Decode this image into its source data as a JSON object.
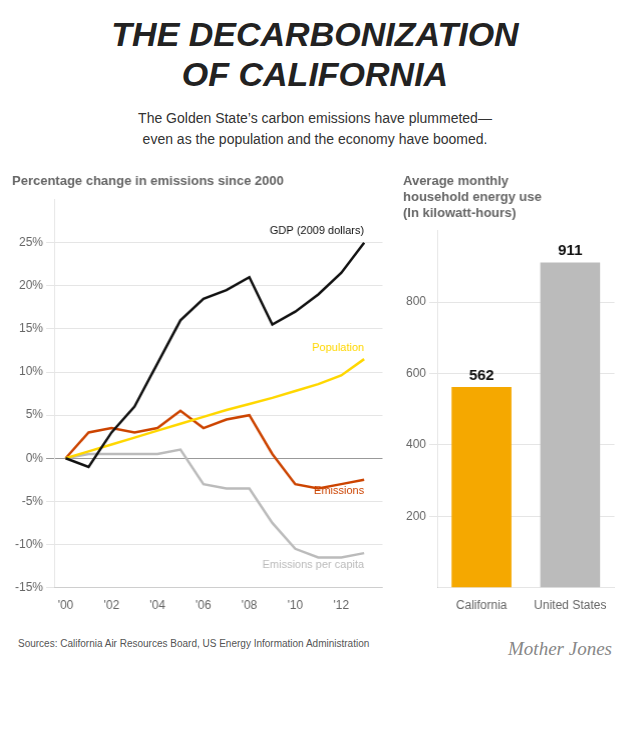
{
  "title": "THE DECARBONIZATION\nOF CALIFORNIA",
  "subtitle": "The Golden State’s carbon emissions have plummeted—\neven as the population and the economy have boomed.",
  "annotations": [
    "Sources: California Air Resources Board, US Energy Information Administration",
    "Mother Jones"
  ],
  "chart_data": [
    {
      "type": "line",
      "title": "Percentage change in emissions since 2000",
      "x": [
        2000,
        2001,
        2002,
        2003,
        2004,
        2005,
        2006,
        2007,
        2008,
        2009,
        2010,
        2011,
        2012,
        2013
      ],
      "series": [
        {
          "name": "Emissions per capita",
          "color": "#BBBBBB",
          "values": [
            0,
            0.5,
            0.5,
            0.5,
            0.5,
            1.0,
            -3.0,
            -3.5,
            -3.5,
            -7.5,
            -10.5,
            -11.5,
            -11.5,
            -11.0
          ]
        },
        {
          "name": "Emissions",
          "color": "#CC4400",
          "values": [
            0,
            3.0,
            3.5,
            3.0,
            3.5,
            5.5,
            3.5,
            4.5,
            5.0,
            0.5,
            -3.0,
            -3.5,
            -3.0,
            -2.5
          ]
        },
        {
          "name": "Population",
          "color": "#FFD700",
          "values": [
            0,
            0.8,
            1.6,
            2.4,
            3.2,
            4.0,
            4.8,
            5.6,
            6.3,
            7.0,
            7.8,
            8.6,
            9.6,
            11.5
          ]
        },
        {
          "name": "GDP (2009 dollars)",
          "color": "#111111",
          "values": [
            0,
            -1.0,
            3.0,
            6.0,
            11.0,
            16.0,
            18.5,
            19.5,
            21.0,
            15.5,
            17.0,
            19.0,
            21.5,
            25.0
          ]
        }
      ],
      "xlim": [
        1999.5,
        2013.8
      ],
      "xticks": [
        {
          "value": 2000,
          "label": "'00"
        },
        {
          "value": 2002,
          "label": "'02"
        },
        {
          "value": 2004,
          "label": "'04"
        },
        {
          "value": 2006,
          "label": "'06"
        },
        {
          "value": 2008,
          "label": "'08"
        },
        {
          "value": 2010,
          "label": "'10"
        },
        {
          "value": 2012,
          "label": "'12"
        }
      ],
      "ylim": [
        -15,
        30
      ],
      "yticks": [
        {
          "value": -15,
          "label": "-15%"
        },
        {
          "value": -10,
          "label": "-10%"
        },
        {
          "value": -5,
          "label": "-5%"
        },
        {
          "value": 0,
          "label": "0%"
        },
        {
          "value": 5,
          "label": "5%"
        },
        {
          "value": 10,
          "label": "10%"
        },
        {
          "value": 15,
          "label": "15%"
        },
        {
          "value": 20,
          "label": "20%"
        },
        {
          "value": 25,
          "label": "25%"
        }
      ],
      "grid": true
    },
    {
      "type": "bar",
      "title": "Average monthly\nhousehold energy use\n(In kilowatt-hours)",
      "categories": [
        "California",
        "United States"
      ],
      "values": [
        562,
        911
      ],
      "colors": [
        "#F5A800",
        "#BBBBBB"
      ],
      "ylim": [
        0,
        1000
      ],
      "yticks": [
        200,
        400,
        600,
        800
      ],
      "grid": true,
      "data_labels": true
    }
  ]
}
